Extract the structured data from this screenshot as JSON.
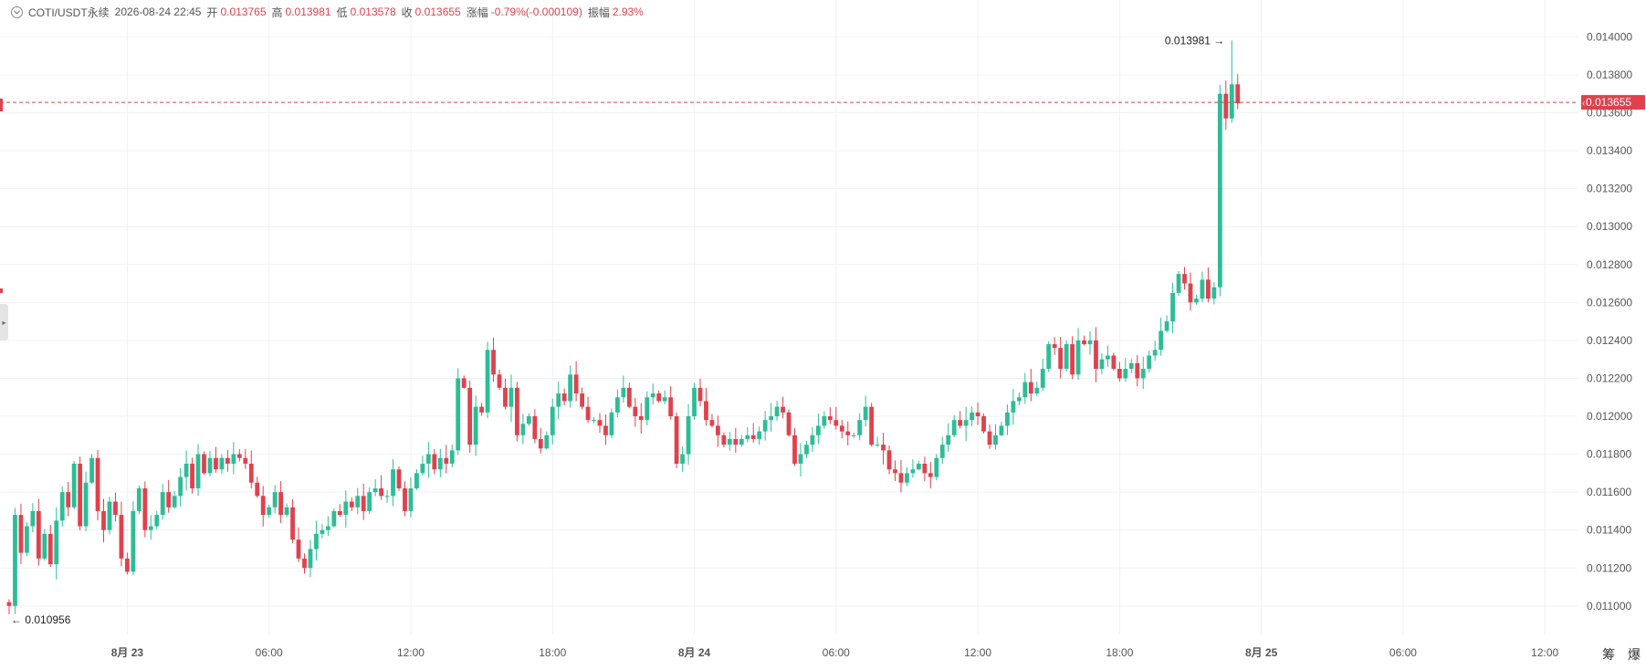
{
  "header": {
    "symbol": "COTI/USDT永续",
    "datetime": "2026-08-24 22:45",
    "open_label": "开",
    "open": "0.013765",
    "high_label": "高",
    "high": "0.013981",
    "low_label": "低",
    "low": "0.013578",
    "close_label": "收",
    "close": "0.013655",
    "change_label": "涨幅",
    "change": "-0.79%(-0.000109)",
    "amplitude_label": "振幅",
    "amplitude": "2.93%"
  },
  "colors": {
    "up": "#2dbd96",
    "down": "#e0414d",
    "grid": "#f0f1f3",
    "axis_text": "#555555"
  },
  "chart_data": {
    "type": "candlestick",
    "y_axis": {
      "min": 0.01085,
      "max": 0.01405,
      "ticks": [
        "0.014000",
        "0.013800",
        "0.013600",
        "0.013400",
        "0.013200",
        "0.013000",
        "0.012800",
        "0.012600",
        "0.012400",
        "0.012200",
        "0.012000",
        "0.011800",
        "0.011600",
        "0.011400",
        "0.011200",
        "0.011000"
      ]
    },
    "x_axis": {
      "ticks": [
        {
          "label": "8月 23",
          "index": 20,
          "bold": true
        },
        {
          "label": "06:00",
          "index": 44,
          "bold": false
        },
        {
          "label": "12:00",
          "index": 68,
          "bold": false
        },
        {
          "label": "18:00",
          "index": 92,
          "bold": false
        },
        {
          "label": "8月 24",
          "index": 116,
          "bold": true
        },
        {
          "label": "06:00",
          "index": 140,
          "bold": false
        },
        {
          "label": "12:00",
          "index": 164,
          "bold": false
        },
        {
          "label": "18:00",
          "index": 188,
          "bold": false
        },
        {
          "label": "8月 25",
          "index": 212,
          "bold": true
        },
        {
          "label": "06:00",
          "index": 236,
          "bold": false
        },
        {
          "label": "12:00",
          "index": 260,
          "bold": false
        }
      ]
    },
    "total_slots": 268,
    "last_price": "0.013655",
    "last_price_value": 0.013655,
    "max_annotation": "0.013981",
    "max_value": 0.013981,
    "max_index": 207,
    "min_annotation": "0.010956",
    "min_value": 0.010956,
    "min_index": 0,
    "closes": [
      0.011,
      0.01148,
      0.01128,
      0.01142,
      0.0115,
      0.01125,
      0.01138,
      0.01122,
      0.01145,
      0.0116,
      0.01152,
      0.01175,
      0.01142,
      0.01165,
      0.01178,
      0.0115,
      0.0114,
      0.01155,
      0.01148,
      0.01125,
      0.01118,
      0.0115,
      0.01162,
      0.0114,
      0.01142,
      0.01148,
      0.0116,
      0.01152,
      0.01158,
      0.01168,
      0.01175,
      0.01162,
      0.0118,
      0.0117,
      0.01178,
      0.01172,
      0.01178,
      0.01175,
      0.0118,
      0.01178,
      0.01175,
      0.01165,
      0.01158,
      0.01148,
      0.01152,
      0.0116,
      0.01148,
      0.01152,
      0.01135,
      0.01125,
      0.0112,
      0.0113,
      0.01138,
      0.0114,
      0.01142,
      0.0115,
      0.01148,
      0.01155,
      0.01152,
      0.01158,
      0.0115,
      0.0116,
      0.01162,
      0.01158,
      0.01158,
      0.01172,
      0.01162,
      0.0115,
      0.01162,
      0.0117,
      0.01175,
      0.0118,
      0.01172,
      0.01178,
      0.01175,
      0.01182,
      0.0122,
      0.01215,
      0.01185,
      0.01205,
      0.01202,
      0.01235,
      0.01222,
      0.01215,
      0.01205,
      0.01215,
      0.0119,
      0.01196,
      0.012,
      0.01188,
      0.01183,
      0.0119,
      0.01205,
      0.01212,
      0.01208,
      0.01222,
      0.01212,
      0.01205,
      0.01198,
      0.01198,
      0.01195,
      0.0119,
      0.01202,
      0.0121,
      0.01215,
      0.01205,
      0.012,
      0.01198,
      0.0121,
      0.01212,
      0.01208,
      0.0121,
      0.012,
      0.01175,
      0.0118,
      0.012,
      0.01215,
      0.01208,
      0.01198,
      0.01195,
      0.0119,
      0.01185,
      0.01188,
      0.01185,
      0.01188,
      0.0119,
      0.01188,
      0.01192,
      0.01198,
      0.012,
      0.01205,
      0.01202,
      0.0119,
      0.01175,
      0.0118,
      0.01185,
      0.0119,
      0.01195,
      0.012,
      0.01198,
      0.01195,
      0.01192,
      0.0119,
      0.0119,
      0.01198,
      0.01205,
      0.01185,
      0.01185,
      0.01182,
      0.01172,
      0.0117,
      0.01165,
      0.0117,
      0.01172,
      0.01175,
      0.0117,
      0.01168,
      0.01178,
      0.01185,
      0.0119,
      0.01198,
      0.01195,
      0.01198,
      0.01202,
      0.012,
      0.01192,
      0.01185,
      0.0119,
      0.01195,
      0.01202,
      0.01208,
      0.0121,
      0.01218,
      0.01212,
      0.01215,
      0.01225,
      0.01238,
      0.01236,
      0.01225,
      0.01238,
      0.01222,
      0.0124,
      0.01238,
      0.0124,
      0.01225,
      0.0123,
      0.01232,
      0.01225,
      0.0122,
      0.01225,
      0.01228,
      0.0122,
      0.01225,
      0.01232,
      0.01235,
      0.01245,
      0.0125,
      0.01265,
      0.01275,
      0.0127,
      0.0126,
      0.01262,
      0.01272,
      0.01262,
      0.01268,
      0.0137,
      0.01357,
      0.01375,
      0.01365
    ]
  },
  "corner": {
    "a": "筹",
    "b": "爆"
  }
}
